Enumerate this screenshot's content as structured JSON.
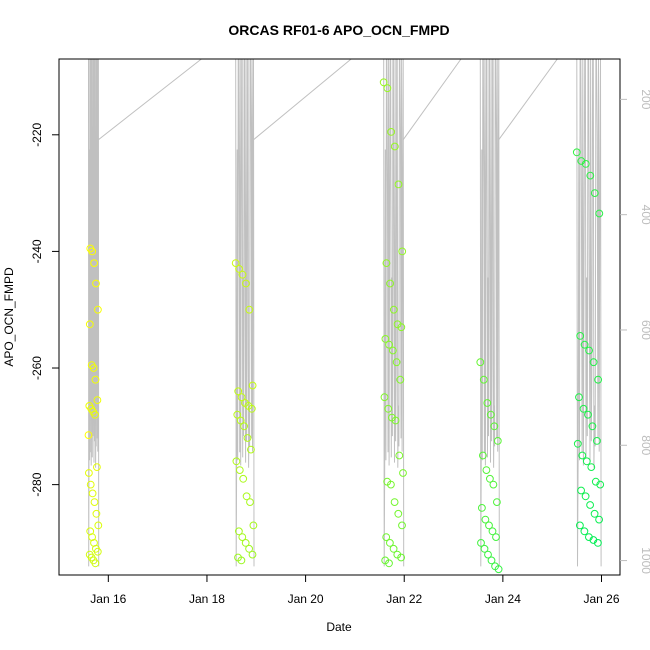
{
  "chart_data": {
    "type": "scatter",
    "title": "ORCAS RF01-6 APO_OCN_FMPD",
    "xlabel": "Date",
    "ylabel": "APO_OCN_FMPD",
    "xlim": [
      "2016-01-15T00:00",
      "2016-01-26T09:00"
    ],
    "ylim": [
      -295.5,
      -207
    ],
    "y2lim": [
      1025,
      130
    ],
    "x_ticks": [
      "2016-01-16",
      "2016-01-18",
      "2016-01-20",
      "2016-01-22",
      "2016-01-24",
      "2016-01-26"
    ],
    "x_tick_labels": [
      "Jan 16",
      "Jan 18",
      "Jan 20",
      "Jan 22",
      "Jan 24",
      "Jan 26"
    ],
    "y_ticks": [
      -220,
      -240,
      -260,
      -280
    ],
    "y_tick_labels": [
      "-220",
      "-240",
      "-260",
      "-280"
    ],
    "y2_ticks": [
      200,
      400,
      600,
      800,
      1000
    ],
    "y2_tick_labels": [
      "200",
      "400",
      "600",
      "800",
      "1000"
    ],
    "grid": false,
    "point_color_start": "#ffff00",
    "point_color_end": "#00ee55",
    "line_color": "#c0c0c0",
    "flights": [
      {
        "start": "2016-01-15T14:20",
        "end": "2016-01-15T19:10",
        "y": [
          -271.5,
          -239.5,
          -240,
          -242,
          -245.5,
          -250,
          -252.5,
          -259.5,
          -260,
          -262,
          -265.5,
          -266.5,
          -267,
          -267.5,
          -268,
          -277,
          -278,
          -280,
          -281.5,
          -283,
          -285,
          -287,
          -288,
          -289,
          -290,
          -291,
          -291.5,
          -292,
          -292.5,
          -293,
          -293.5
        ]
      },
      {
        "start": "2016-01-18T14:00",
        "end": "2016-01-18T22:40",
        "y": [
          -242,
          -243,
          -244,
          -245.5,
          -250,
          -263,
          -264,
          -265,
          -266,
          -266.5,
          -267,
          -268,
          -269,
          -270,
          -272,
          -274,
          -276,
          -277.5,
          -279,
          -282,
          -283,
          -287,
          -288,
          -289,
          -290,
          -291,
          -292,
          -292.5,
          -293
        ]
      },
      {
        "start": "2016-01-21T14:00",
        "end": "2016-01-21T23:30",
        "y": [
          -211,
          -212,
          -219.5,
          -222,
          -228.5,
          -240,
          -242,
          -245.5,
          -250,
          -252.5,
          -253,
          -255,
          -256,
          -257,
          -259,
          -262,
          -265,
          -267,
          -268.5,
          -269,
          -275,
          -278,
          -279.5,
          -280,
          -283,
          -285,
          -287,
          -289,
          -290,
          -291,
          -292,
          -292.5,
          -293,
          -293.5
        ]
      },
      {
        "start": "2016-01-23T13:00",
        "end": "2016-01-23T22:00",
        "y": [
          -259,
          -262,
          -266,
          -268,
          -270,
          -272.5,
          -275,
          -277.5,
          -279,
          -280,
          -283,
          -284,
          -286,
          -287,
          -288,
          -289,
          -290,
          -291,
          -292,
          -293,
          -294,
          -294.5
        ]
      },
      {
        "start": "2016-01-25T12:00",
        "end": "2016-01-25T23:30",
        "y": [
          -223,
          -224.5,
          -225,
          -227,
          -230,
          -233.5,
          -254.5,
          -256,
          -257,
          -259,
          -262,
          -265,
          -267,
          -268,
          -270,
          -272.5,
          -273,
          -275,
          -276,
          -277,
          -279.5,
          -280,
          -281,
          -282,
          -283.5,
          -285,
          -286,
          -287,
          -288,
          -289,
          -289.5,
          -290
        ]
      }
    ]
  }
}
